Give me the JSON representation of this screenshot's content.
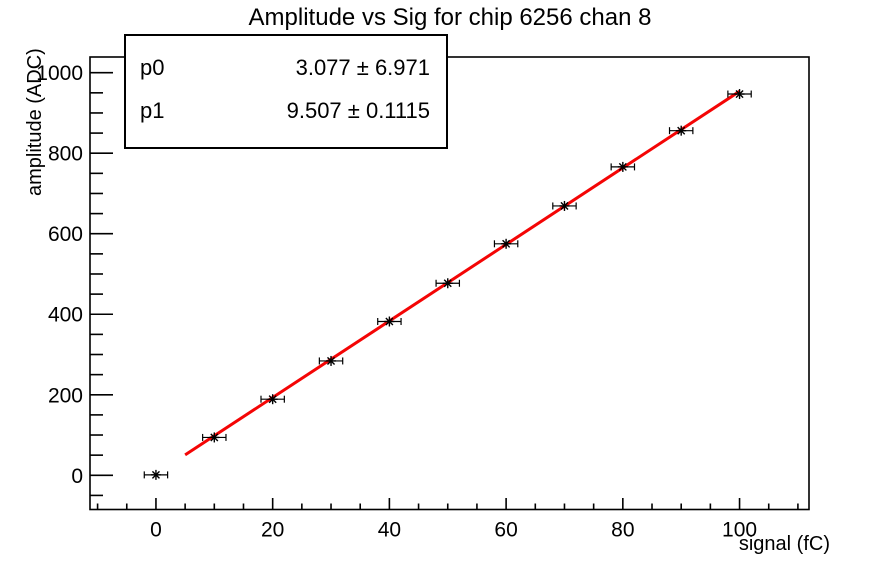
{
  "title": "Amplitude vs Sig for chip 6256 chan 8",
  "stats_box": {
    "rows": [
      {
        "name": "p0",
        "value": "3.077 ± 6.971"
      },
      {
        "name": "p1",
        "value": "9.507 ± 0.1115"
      }
    ]
  },
  "chart_data": {
    "type": "scatter",
    "title": "Amplitude vs Sig for chip 6256 chan 8",
    "xlabel": "signal (fC)",
    "ylabel": "amplitude (ADC)",
    "x": [
      0,
      10,
      20,
      30,
      40,
      50,
      60,
      70,
      80,
      90,
      100
    ],
    "y": [
      1,
      94,
      189,
      284,
      382,
      477,
      575,
      669,
      766,
      856,
      947
    ],
    "x_error": 2,
    "xlim": [
      -11.3,
      111.9
    ],
    "ylim": [
      -85,
      1039
    ],
    "x_major_ticks": [
      0,
      20,
      40,
      60,
      80,
      100
    ],
    "x_minor_step": 5,
    "y_major_ticks": [
      0,
      200,
      400,
      600,
      800,
      1000
    ],
    "y_minor_step": 50,
    "grid": false,
    "legend": "none",
    "marker": "asterisk",
    "fit": {
      "label": "linear",
      "p0": 3.077,
      "p1": 9.507,
      "range": [
        5,
        100
      ],
      "color": "#f40505"
    }
  },
  "colors": {
    "background": "#ffffff",
    "axis": "#000000",
    "marker": "#000000",
    "fit_line": "#f40505",
    "text": "#000000"
  }
}
